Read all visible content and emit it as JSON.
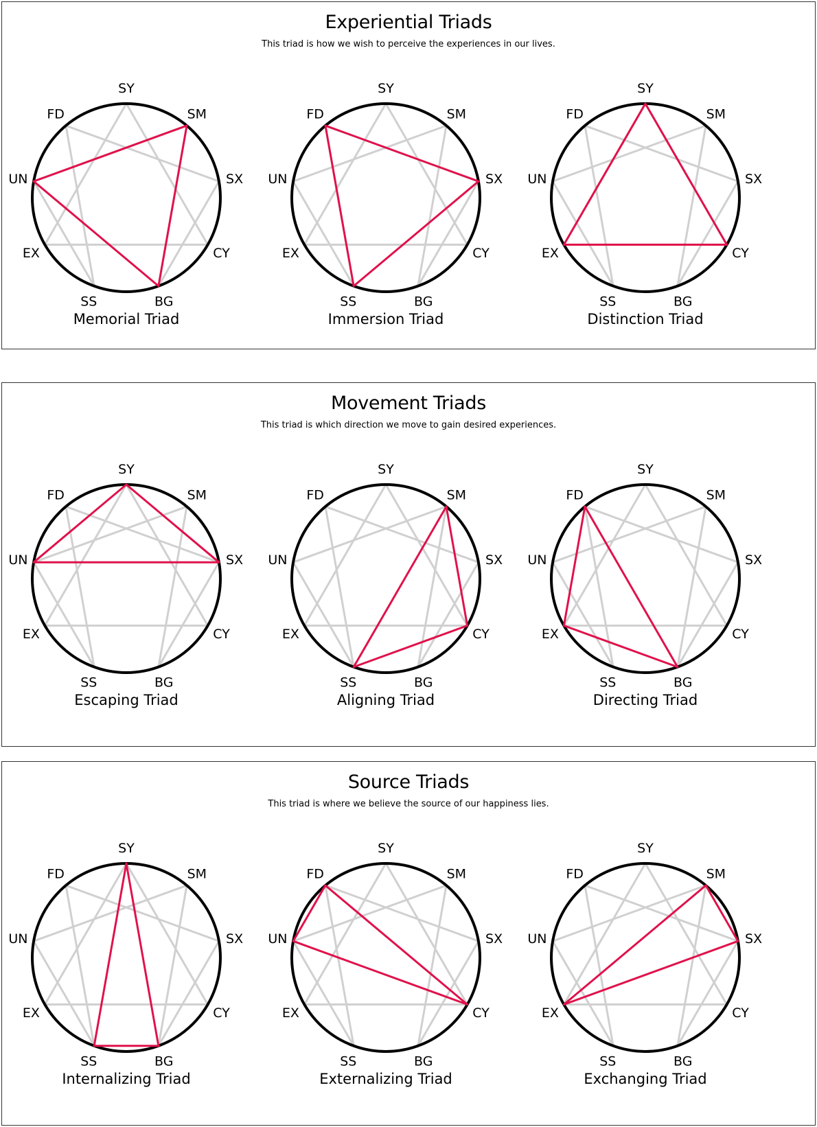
{
  "nodes": [
    "SY",
    "SM",
    "SX",
    "CY",
    "BG",
    "SS",
    "EX",
    "UN",
    "FD"
  ],
  "colors": {
    "highlight": "#e0124b",
    "ring": "#000000",
    "figure": "#d0d0d0"
  },
  "sections": [
    {
      "title": "Experiential Triads",
      "subtitle": "This triad is how we wish to perceive the experiences in our lives.",
      "triads": [
        {
          "label": "Memorial Triad",
          "vertices": [
            "SM",
            "BG",
            "UN"
          ]
        },
        {
          "label": "Immersion Triad",
          "vertices": [
            "FD",
            "SX",
            "SS"
          ]
        },
        {
          "label": "Distinction Triad",
          "vertices": [
            "SY",
            "CY",
            "EX"
          ]
        }
      ]
    },
    {
      "title": "Movement Triads",
      "subtitle": "This triad is which direction we move to gain desired experiences.",
      "triads": [
        {
          "label": "Escaping Triad",
          "vertices": [
            "SY",
            "SX",
            "UN"
          ]
        },
        {
          "label": "Aligning Triad",
          "vertices": [
            "SM",
            "CY",
            "SS"
          ]
        },
        {
          "label": "Directing Triad",
          "vertices": [
            "FD",
            "BG",
            "EX"
          ]
        }
      ]
    },
    {
      "title": "Source Triads",
      "subtitle": "This triad is where we believe the source of our happiness lies.",
      "triads": [
        {
          "label": "Internalizing Triad",
          "vertices": [
            "SY",
            "BG",
            "SS"
          ]
        },
        {
          "label": "Externalizing Triad",
          "vertices": [
            "FD",
            "CY",
            "UN"
          ]
        },
        {
          "label": "Exchanging Triad",
          "vertices": [
            "SM",
            "SX",
            "EX"
          ]
        }
      ]
    }
  ]
}
